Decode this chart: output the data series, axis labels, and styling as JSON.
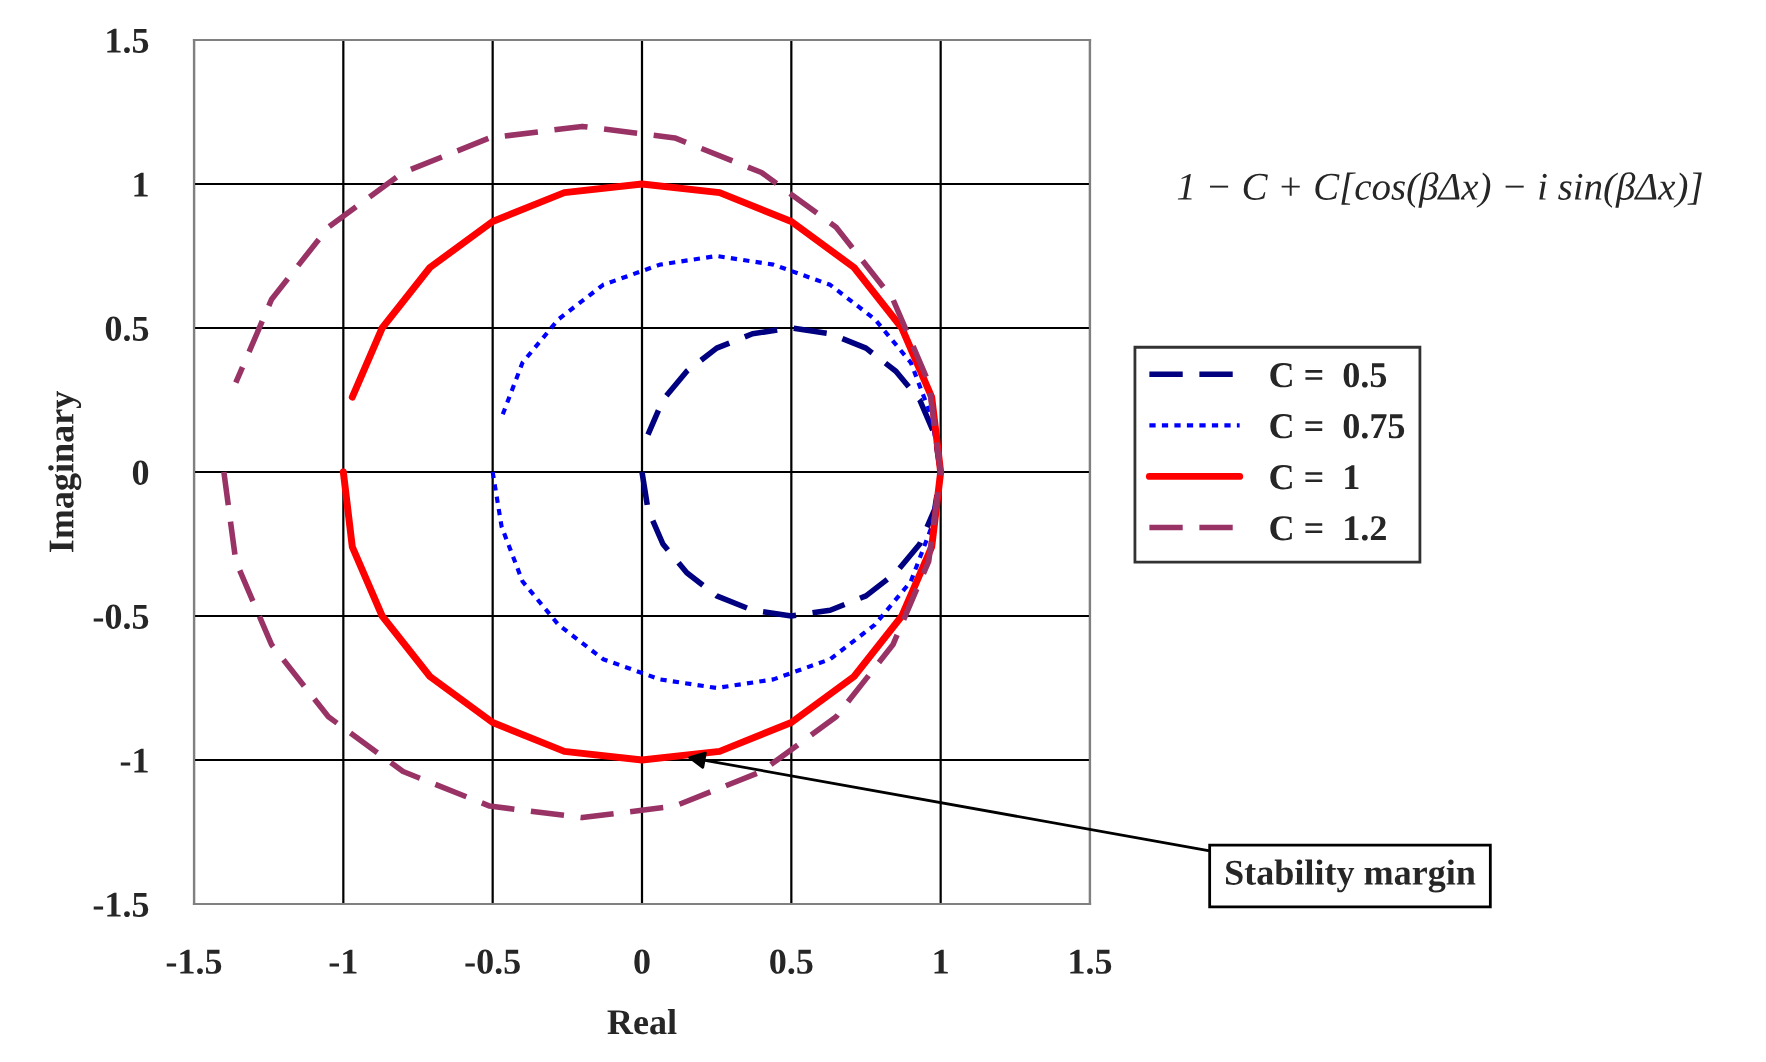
{
  "chart_data": {
    "type": "line",
    "xlabel": "Real",
    "ylabel": "Imaginary",
    "xlim": [
      -1.5,
      1.5
    ],
    "ylim": [
      -1.5,
      1.5
    ],
    "xticks": [
      -1.5,
      -1,
      -0.5,
      0,
      0.5,
      1,
      1.5
    ],
    "yticks": [
      -1.5,
      -1,
      -0.5,
      0,
      0.5,
      1,
      1.5
    ],
    "grid": true,
    "legend": "right",
    "marker": "none",
    "annotations": [
      "1 − C + C[cos(βΔx) − i sin(βΔx)]",
      "Stability margin"
    ],
    "series": [
      {
        "name": "C =  0.5",
        "color": "#000080",
        "line_style": "dashed",
        "x": [
          0,
          0.02,
          0.07,
          0.15,
          0.25,
          0.37,
          0.5,
          0.63,
          0.75,
          0.85,
          0.93,
          0.98,
          1,
          0.98,
          0.93,
          0.85,
          0.75,
          0.63,
          0.5,
          0.37,
          0.25,
          0.15,
          0.07,
          0.02
        ],
        "values": [
          0,
          -0.13,
          -0.25,
          -0.35,
          -0.43,
          -0.48,
          -0.5,
          -0.48,
          -0.43,
          -0.35,
          -0.25,
          -0.13,
          0,
          0.13,
          0.25,
          0.35,
          0.43,
          0.48,
          0.5,
          0.48,
          0.43,
          0.35,
          0.25,
          0.13
        ]
      },
      {
        "name": "C =  0.75",
        "color": "#0000ff",
        "line_style": "dotted",
        "x": [
          -0.5,
          -0.47,
          -0.4,
          -0.28,
          -0.13,
          0.06,
          0.25,
          0.44,
          0.63,
          0.78,
          0.9,
          0.97,
          1,
          0.97,
          0.9,
          0.78,
          0.63,
          0.44,
          0.25,
          0.06,
          -0.13,
          -0.28,
          -0.4,
          -0.47
        ],
        "values": [
          0,
          -0.19,
          -0.38,
          -0.53,
          -0.65,
          -0.72,
          -0.75,
          -0.72,
          -0.65,
          -0.53,
          -0.38,
          -0.19,
          0,
          0.19,
          0.38,
          0.53,
          0.65,
          0.72,
          0.75,
          0.72,
          0.65,
          0.53,
          0.38,
          0.19
        ]
      },
      {
        "name": "C =  1",
        "color": "#ff0000",
        "line_style": "solid",
        "x": [
          -1,
          -0.97,
          -0.87,
          -0.71,
          -0.5,
          -0.26,
          0,
          0.26,
          0.5,
          0.71,
          0.87,
          0.97,
          1,
          0.97,
          0.87,
          0.71,
          0.5,
          0.26,
          0,
          -0.26,
          -0.5,
          -0.71,
          -0.87,
          -0.97
        ],
        "values": [
          0,
          -0.26,
          -0.5,
          -0.71,
          -0.87,
          -0.97,
          -1,
          -0.97,
          -0.87,
          -0.71,
          -0.5,
          -0.26,
          0,
          0.26,
          0.5,
          0.71,
          0.87,
          0.97,
          1,
          0.97,
          0.87,
          0.71,
          0.5,
          0.26
        ]
      },
      {
        "name": "C =  1.2",
        "color": "#993366",
        "line_style": "dashed",
        "x": [
          -1.4,
          -1.36,
          -1.24,
          -1.05,
          -0.8,
          -0.51,
          -0.2,
          0.11,
          0.4,
          0.65,
          0.84,
          0.96,
          1,
          0.96,
          0.84,
          0.65,
          0.4,
          0.11,
          -0.2,
          -0.51,
          -0.8,
          -1.05,
          -1.24,
          -1.36
        ],
        "values": [
          0,
          -0.31,
          -0.6,
          -0.85,
          -1.04,
          -1.16,
          -1.2,
          -1.16,
          -1.04,
          -0.85,
          -0.6,
          -0.31,
          0,
          0.31,
          0.6,
          0.85,
          1.04,
          1.16,
          1.2,
          1.16,
          1.04,
          0.85,
          0.6,
          0.31
        ]
      }
    ]
  }
}
